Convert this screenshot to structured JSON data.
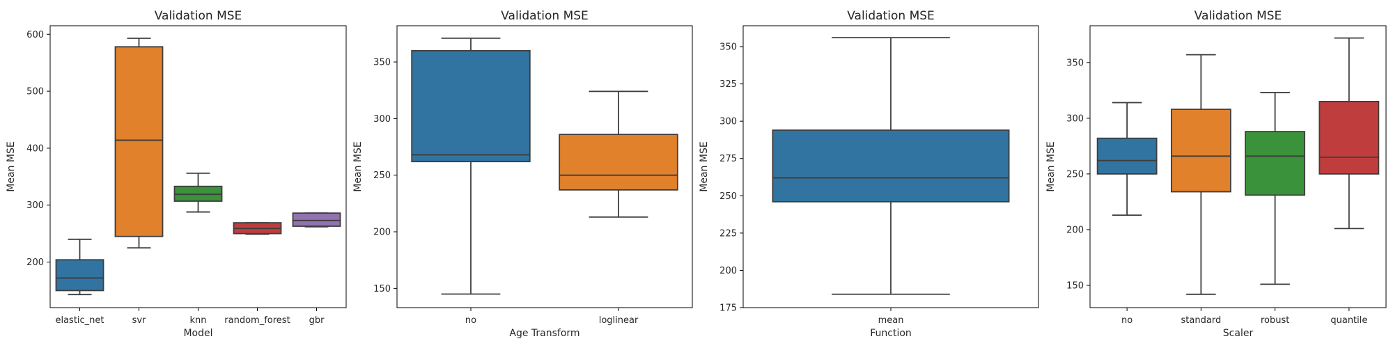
{
  "chart_data": [
    {
      "type": "boxplot",
      "title": "Validation MSE",
      "xlabel": "Model",
      "ylabel": "Mean MSE",
      "ylim": [
        120,
        615
      ],
      "yticks": [
        200,
        300,
        400,
        500,
        600
      ],
      "grid": false,
      "categories": [
        "elastic_net",
        "svr",
        "knn",
        "random_forest",
        "gbr"
      ],
      "boxes": [
        {
          "min": 143,
          "q1": 150,
          "median": 172,
          "q3": 204,
          "max": 240
        },
        {
          "min": 225,
          "q1": 245,
          "median": 414,
          "q3": 578,
          "max": 593
        },
        {
          "min": 288,
          "q1": 307,
          "median": 319,
          "q3": 333,
          "max": 356
        },
        {
          "min": 249,
          "q1": 250,
          "median": 259,
          "q3": 269,
          "max": 269
        },
        {
          "min": 262,
          "q1": 263,
          "median": 273,
          "q3": 286,
          "max": 286
        }
      ],
      "colors": [
        "#3274a1",
        "#e1812c",
        "#3a923a",
        "#c03d3e",
        "#9372b2"
      ]
    },
    {
      "type": "boxplot",
      "title": "Validation MSE",
      "xlabel": "Age Transform",
      "ylabel": "Mean MSE",
      "ylim": [
        133,
        382
      ],
      "yticks": [
        150,
        200,
        250,
        300,
        350
      ],
      "grid": false,
      "categories": [
        "no",
        "loglinear"
      ],
      "boxes": [
        {
          "min": 145,
          "q1": 262,
          "median": 268,
          "q3": 360,
          "max": 371
        },
        {
          "min": 213,
          "q1": 237,
          "median": 250,
          "q3": 286,
          "max": 324
        }
      ],
      "colors": [
        "#3274a1",
        "#e1812c"
      ]
    },
    {
      "type": "boxplot",
      "title": "Validation MSE",
      "xlabel": "Function",
      "ylabel": "Mean MSE",
      "ylim": [
        175,
        364
      ],
      "yticks": [
        175,
        200,
        225,
        250,
        275,
        300,
        325,
        350
      ],
      "grid": false,
      "categories": [
        "mean"
      ],
      "boxes": [
        {
          "min": 184,
          "q1": 246,
          "median": 262,
          "q3": 294,
          "max": 356
        }
      ],
      "colors": [
        "#3274a1"
      ]
    },
    {
      "type": "boxplot",
      "title": "Validation MSE",
      "xlabel": "Scaler",
      "ylabel": "Mean MSE",
      "ylim": [
        130,
        383
      ],
      "yticks": [
        150,
        200,
        250,
        300,
        350
      ],
      "grid": false,
      "categories": [
        "no",
        "standard",
        "robust",
        "quantile"
      ],
      "boxes": [
        {
          "min": 213,
          "q1": 250,
          "median": 262,
          "q3": 282,
          "max": 314
        },
        {
          "min": 142,
          "q1": 234,
          "median": 266,
          "q3": 308,
          "max": 357
        },
        {
          "min": 151,
          "q1": 231,
          "median": 266,
          "q3": 288,
          "max": 323
        },
        {
          "min": 201,
          "q1": 250,
          "median": 265,
          "q3": 315,
          "max": 372
        }
      ],
      "colors": [
        "#3274a1",
        "#e1812c",
        "#3a923a",
        "#c03d3e"
      ]
    }
  ]
}
